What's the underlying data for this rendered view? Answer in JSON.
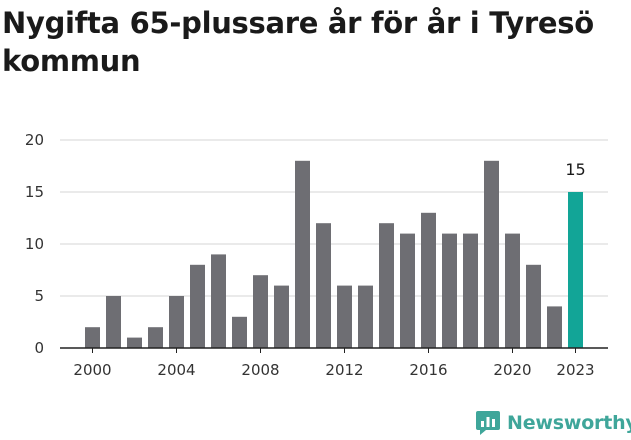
{
  "title": "Nygifta 65-plussare år för år i Tyresö kommun",
  "brand": {
    "name": "Newsworthy"
  },
  "colors": {
    "bar": "#6e6e73",
    "highlight": "#12a597",
    "grid": "#d6d6d6",
    "axis": "#222222",
    "brand": "#3fa69a"
  },
  "chart_data": {
    "type": "bar",
    "title": "Nygifta 65-plussare år för år i Tyresö kommun",
    "xlabel": "",
    "ylabel": "",
    "categories": [
      2000,
      2001,
      2002,
      2003,
      2004,
      2005,
      2006,
      2007,
      2008,
      2009,
      2010,
      2011,
      2012,
      2013,
      2014,
      2015,
      2016,
      2017,
      2018,
      2019,
      2020,
      2021,
      2022,
      2023
    ],
    "values": [
      2,
      5,
      1,
      2,
      5,
      8,
      9,
      3,
      7,
      6,
      18,
      12,
      6,
      6,
      12,
      11,
      13,
      11,
      11,
      18,
      11,
      8,
      4,
      15
    ],
    "highlight_index": 23,
    "highlight_label": "15",
    "ylim": [
      0,
      20
    ],
    "y_ticks": [
      0,
      5,
      10,
      15,
      20
    ],
    "x_tick_labels": [
      "2000",
      "2004",
      "2008",
      "2012",
      "2016",
      "2020",
      "2023"
    ],
    "grid": true,
    "legend": "none"
  }
}
